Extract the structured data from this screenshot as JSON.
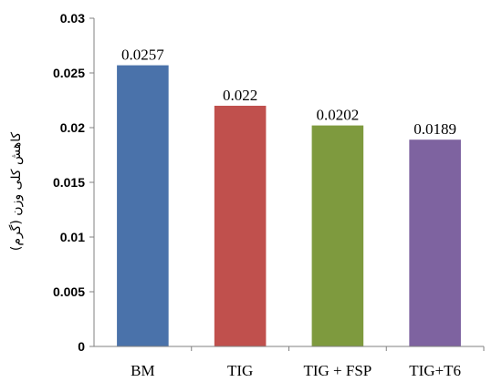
{
  "chart_data": {
    "type": "bar",
    "title": "",
    "xlabel": "",
    "ylabel": "کاهش کلی وزن (گرم)",
    "categories": [
      "BM",
      "TIG",
      "TIG + FSP",
      "TIG+T6"
    ],
    "values": [
      0.0257,
      0.022,
      0.0202,
      0.0189
    ],
    "data_labels": [
      "0.0257",
      "0.022",
      "0.0202",
      "0.0189"
    ],
    "colors": [
      "#4A72AA",
      "#C0504D",
      "#7E9A3E",
      "#7E63A0"
    ],
    "ylim": [
      0,
      0.03
    ],
    "yticks": [
      0,
      0.005,
      0.01,
      0.015,
      0.02,
      0.025,
      0.03
    ],
    "ytick_labels": [
      "0",
      "0.005",
      "0.01",
      "0.015",
      "0.02",
      "0.025",
      "0.03"
    ],
    "grid": false,
    "legend": "none"
  }
}
